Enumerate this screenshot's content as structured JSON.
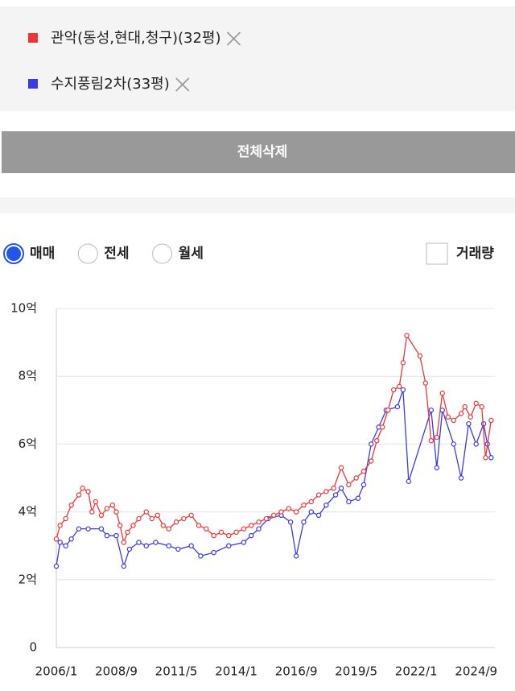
{
  "controls": {
    "clear_button": "전체삭제",
    "trade_types": [
      "매매",
      "전세",
      "월세"
    ],
    "selected_trade_type": 0,
    "volume_checkbox": "거래량",
    "volume_checked": false
  },
  "chart_data": {
    "type": "line",
    "series": [
      {
        "name": "관악(동성,현대,청구)(32평)",
        "color": "#f03535",
        "x": [
          "2006/1",
          "2006/3",
          "2006/6",
          "2006/9",
          "2007/1",
          "2007/3",
          "2007/6",
          "2007/8",
          "2007/10",
          "2008/1",
          "2008/4",
          "2008/7",
          "2008/9",
          "2008/11",
          "2009/1",
          "2009/3",
          "2009/6",
          "2009/9",
          "2010/1",
          "2010/4",
          "2010/7",
          "2010/10",
          "2011/1",
          "2011/5",
          "2011/9",
          "2012/1",
          "2012/5",
          "2012/9",
          "2013/1",
          "2013/5",
          "2013/9",
          "2014/1",
          "2014/5",
          "2014/9",
          "2015/1",
          "2015/5",
          "2015/9",
          "2016/1",
          "2016/5",
          "2016/9",
          "2017/1",
          "2017/5",
          "2017/9",
          "2018/1",
          "2018/5",
          "2018/9",
          "2019/1",
          "2019/5",
          "2019/9",
          "2020/1",
          "2020/4",
          "2020/7",
          "2020/10",
          "2021/1",
          "2021/4",
          "2021/6",
          "2021/8",
          "2022/3",
          "2022/6",
          "2022/9",
          "2022/12",
          "2023/3",
          "2023/6",
          "2023/9",
          "2024/1",
          "2024/3",
          "2024/6",
          "2024/9",
          "2024/12",
          "2025/2",
          "2025/5"
        ],
        "values": [
          3.2,
          3.6,
          3.8,
          4.2,
          4.5,
          4.7,
          4.6,
          4.0,
          4.3,
          3.9,
          4.1,
          4.2,
          4.0,
          3.6,
          3.1,
          3.4,
          3.6,
          3.8,
          4.0,
          3.8,
          3.9,
          3.6,
          3.5,
          3.7,
          3.8,
          3.9,
          3.6,
          3.5,
          3.3,
          3.4,
          3.3,
          3.4,
          3.5,
          3.6,
          3.7,
          3.8,
          3.9,
          4.0,
          4.1,
          4.0,
          4.2,
          4.3,
          4.5,
          4.6,
          4.7,
          5.3,
          4.8,
          5.0,
          5.2,
          5.5,
          6.1,
          6.5,
          7.0,
          7.6,
          7.7,
          8.4,
          9.2,
          8.6,
          7.8,
          6.1,
          6.2,
          7.5,
          6.8,
          6.7,
          6.9,
          7.1,
          6.8,
          7.2,
          7.1,
          5.6,
          6.7
        ]
      },
      {
        "name": "수지풍림2차(33평)",
        "color": "#3a3ae8",
        "x": [
          "2006/1",
          "2006/3",
          "2006/6",
          "2006/9",
          "2007/1",
          "2007/6",
          "2008/1",
          "2008/4",
          "2008/9",
          "2009/1",
          "2009/4",
          "2009/9",
          "2010/1",
          "2010/6",
          "2011/1",
          "2011/6",
          "2012/1",
          "2012/6",
          "2013/1",
          "2013/9",
          "2014/5",
          "2014/9",
          "2015/1",
          "2015/6",
          "2016/1",
          "2016/6",
          "2016/9",
          "2017/1",
          "2017/5",
          "2017/9",
          "2018/1",
          "2018/6",
          "2018/9",
          "2019/1",
          "2019/6",
          "2019/9",
          "2020/1",
          "2020/5",
          "2020/9",
          "2021/3",
          "2021/6",
          "2021/9",
          "2022/9",
          "2022/12",
          "2023/3",
          "2023/9",
          "2024/1",
          "2024/5",
          "2024/9",
          "2025/1",
          "2025/3",
          "2025/5"
        ],
        "values": [
          2.4,
          3.1,
          3.0,
          3.2,
          3.5,
          3.5,
          3.5,
          3.3,
          3.3,
          2.4,
          2.9,
          3.1,
          3.0,
          3.1,
          3.0,
          2.9,
          3.0,
          2.7,
          2.8,
          3.0,
          3.1,
          3.3,
          3.5,
          3.8,
          3.9,
          3.7,
          2.7,
          3.7,
          4.0,
          3.9,
          4.2,
          4.5,
          4.7,
          4.3,
          4.4,
          4.8,
          6.0,
          6.5,
          7.0,
          7.1,
          7.6,
          4.9,
          7.0,
          5.3,
          7.0,
          6.0,
          5.0,
          6.6,
          6.0,
          6.6,
          6.0,
          5.6
        ]
      }
    ],
    "xlim": [
      "2006/1",
      "2025/7"
    ],
    "xticks": [
      "2006/1",
      "2008/9",
      "2011/5",
      "2014/1",
      "2016/9",
      "2019/5",
      "2022/1",
      "2024/9"
    ],
    "ylim": [
      0,
      10
    ],
    "yticks": [
      0,
      {
        "value": 2,
        "label": "2억"
      },
      {
        "value": 4,
        "label": "4억"
      },
      {
        "value": 6,
        "label": "6억"
      },
      {
        "value": 8,
        "label": "8억"
      },
      {
        "value": 10,
        "label": "10억"
      }
    ],
    "grid": true
  }
}
